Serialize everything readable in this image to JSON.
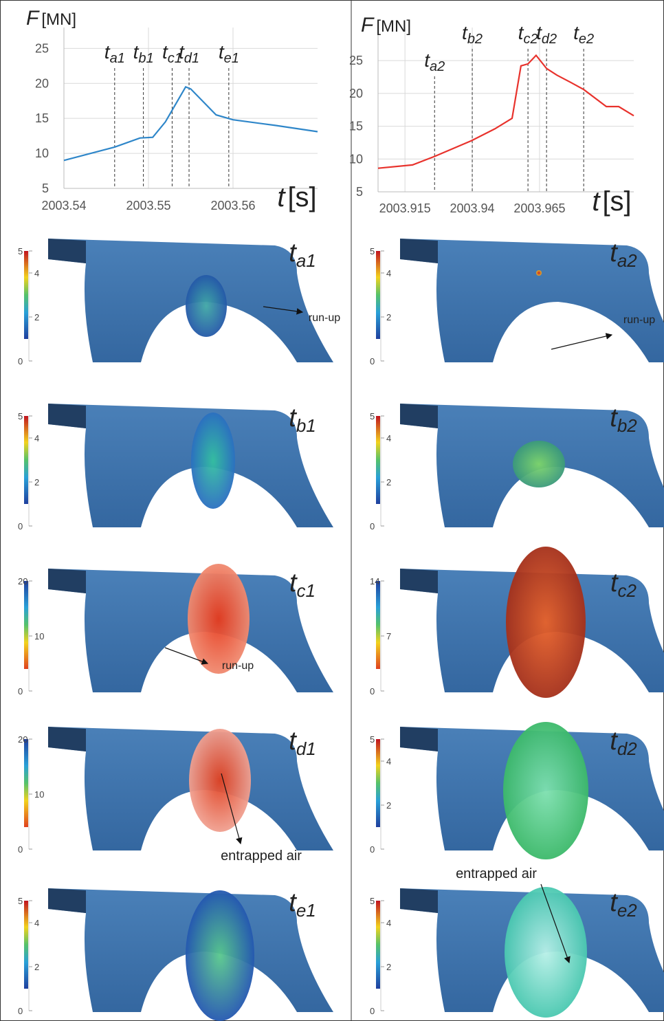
{
  "chart_data": [
    {
      "type": "line",
      "ylabel": {
        "symbol": "F",
        "unit": "[MN]"
      },
      "xlabel": {
        "symbol": "t",
        "unit": "[s]"
      },
      "x": [
        2003.54,
        2003.546,
        2003.549,
        2003.5505,
        2003.552,
        2003.5544,
        2003.555,
        2003.558,
        2003.56,
        2003.565,
        2003.57
      ],
      "series": [
        {
          "color": "#2e86c9",
          "values": [
            9,
            10.9,
            12.2,
            12.3,
            14.5,
            19.5,
            19.2,
            15.5,
            14.8,
            14,
            13.1
          ]
        }
      ],
      "xlim": [
        2003.54,
        2003.57
      ],
      "xticks": [
        2003.54,
        2003.55,
        2003.56
      ],
      "ylim": [
        5,
        27
      ],
      "yticks": [
        5,
        10,
        15,
        20,
        25
      ],
      "grid": true,
      "markers": [
        {
          "x": 2003.546,
          "symbol": "t",
          "subscript": "a1"
        },
        {
          "x": 2003.5494,
          "symbol": "t",
          "subscript": "b1"
        },
        {
          "x": 2003.5528,
          "symbol": "t",
          "subscript": "c1"
        },
        {
          "x": 2003.5548,
          "symbol": "t",
          "subscript": "d1"
        },
        {
          "x": 2003.5595,
          "symbol": "t",
          "subscript": "e1"
        }
      ]
    },
    {
      "type": "line",
      "ylabel": {
        "symbol": "F",
        "unit": "[MN]"
      },
      "xlabel": {
        "symbol": "t",
        "unit": "[s]"
      },
      "x": [
        2003.905,
        2003.9178,
        2003.926,
        2003.9397,
        2003.9484,
        2003.9548,
        2003.9581,
        2003.9607,
        2003.9637,
        2003.9676,
        2003.9714,
        2003.9765,
        2003.9814,
        2003.9898,
        2003.9944,
        2004.0
      ],
      "series": [
        {
          "color": "#e8322c",
          "values": [
            8.6,
            9.1,
            10.4,
            12.8,
            14.6,
            16.2,
            24.2,
            24.5,
            25.8,
            23.8,
            22.8,
            21.7,
            20.6,
            18,
            18,
            16.6
          ]
        }
      ],
      "xlim": [
        2003.905,
        2004.0
      ],
      "xticks": [
        2003.915,
        2003.94,
        2003.965
      ],
      "ylim": [
        5,
        29
      ],
      "yticks": [
        5,
        10,
        15,
        20,
        25
      ],
      "grid": true,
      "markers": [
        {
          "x": 2003.926,
          "symbol": "t",
          "subscript": "a2"
        },
        {
          "x": 2003.94,
          "symbol": "t",
          "subscript": "b2"
        },
        {
          "x": 2003.9607,
          "symbol": "t",
          "subscript": "c2"
        },
        {
          "x": 2003.9676,
          "symbol": "t",
          "subscript": "d2"
        },
        {
          "x": 2003.9814,
          "symbol": "t",
          "subscript": "e2"
        }
      ]
    }
  ],
  "panels": [
    {
      "time": {
        "symbol": "t",
        "subscript": "a1"
      },
      "colorbar": {
        "lim": [
          0,
          5
        ],
        "ticks": [
          0,
          2,
          4,
          5
        ]
      },
      "annotation": "run-up"
    },
    {
      "time": {
        "symbol": "t",
        "subscript": "a2"
      },
      "colorbar": {
        "lim": [
          0,
          5
        ],
        "ticks": [
          0,
          2,
          4,
          5
        ]
      },
      "annotation": "run-up"
    },
    {
      "time": {
        "symbol": "t",
        "subscript": "b1"
      },
      "colorbar": {
        "lim": [
          0,
          5
        ],
        "ticks": [
          0,
          2,
          4,
          5
        ]
      }
    },
    {
      "time": {
        "symbol": "t",
        "subscript": "b2"
      },
      "colorbar": {
        "lim": [
          0,
          5
        ],
        "ticks": [
          0,
          2,
          4,
          5
        ]
      }
    },
    {
      "time": {
        "symbol": "t",
        "subscript": "c1"
      },
      "colorbar": {
        "lim": [
          0,
          20
        ],
        "ticks": [
          0,
          10,
          20
        ],
        "reversed": true
      },
      "annotation": "run-up"
    },
    {
      "time": {
        "symbol": "t",
        "subscript": "c2"
      },
      "colorbar": {
        "lim": [
          0,
          14
        ],
        "ticks": [
          0,
          7,
          14
        ],
        "reversed": true
      }
    },
    {
      "time": {
        "symbol": "t",
        "subscript": "d1"
      },
      "colorbar": {
        "lim": [
          0,
          20
        ],
        "ticks": [
          0,
          10,
          20
        ],
        "reversed": true
      },
      "annotation": "entrapped air"
    },
    {
      "time": {
        "symbol": "t",
        "subscript": "d2"
      },
      "colorbar": {
        "lim": [
          0,
          5
        ],
        "ticks": [
          0,
          2,
          4,
          5
        ]
      }
    },
    {
      "time": {
        "symbol": "t",
        "subscript": "e1"
      },
      "colorbar": {
        "lim": [
          0,
          5
        ],
        "ticks": [
          0,
          2,
          4,
          5
        ]
      }
    },
    {
      "time": {
        "symbol": "t",
        "subscript": "e2"
      },
      "colorbar": {
        "lim": [
          0,
          5
        ],
        "ticks": [
          0,
          2,
          4,
          5
        ]
      },
      "annotation": "entrapped air"
    }
  ]
}
